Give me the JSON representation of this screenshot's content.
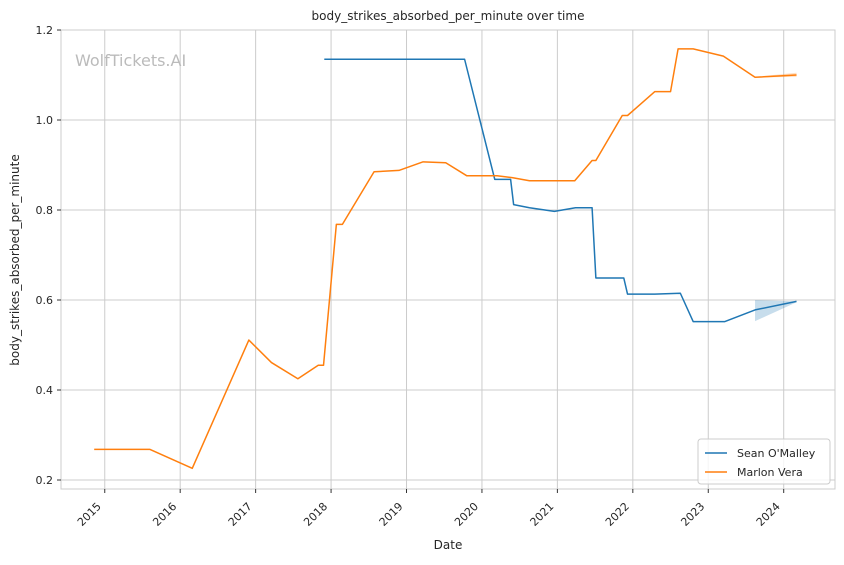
{
  "chart_data": {
    "type": "line",
    "title": "body_strikes_absorbed_per_minute over time",
    "xlabel": "Date",
    "ylabel": "body_strikes_absorbed_per_minute",
    "watermark": "WolfTickets.AI",
    "xlim": [
      2014.42,
      2024.68
    ],
    "ylim": [
      0.18,
      1.2
    ],
    "x_ticks": [
      2015,
      2016,
      2017,
      2018,
      2019,
      2020,
      2021,
      2022,
      2023,
      2024
    ],
    "y_ticks": [
      0.2,
      0.4,
      0.6,
      0.8,
      1.0,
      1.2
    ],
    "y_tick_labels": [
      "0.2",
      "0.4",
      "0.6",
      "0.8",
      "1.0",
      "1.2"
    ],
    "grid": true,
    "legend_position": "bottom-right",
    "series": [
      {
        "name": "Sean O'Malley",
        "color": "#1f77b4",
        "x": [
          2017.91,
          2019.77,
          2020.17,
          2020.38,
          2020.42,
          2020.63,
          2020.96,
          2021.24,
          2021.46,
          2021.51,
          2021.88,
          2021.93,
          2022.29,
          2022.63,
          2022.8,
          2023.22,
          2023.62,
          2024.17
        ],
        "y": [
          1.135,
          1.135,
          0.868,
          0.868,
          0.812,
          0.805,
          0.797,
          0.805,
          0.805,
          0.649,
          0.649,
          0.613,
          0.613,
          0.615,
          0.552,
          0.552,
          0.578,
          0.597
        ],
        "band": {
          "x": [
            2023.62,
            2024.17
          ],
          "upper": [
            0.6,
            0.597
          ],
          "lower": [
            0.553,
            0.595
          ]
        }
      },
      {
        "name": "Marlon Vera",
        "color": "#ff7f0e",
        "x": [
          2014.86,
          2015.6,
          2016.16,
          2016.91,
          2017.21,
          2017.56,
          2017.83,
          2017.9,
          2018.07,
          2018.15,
          2018.57,
          2018.9,
          2019.22,
          2019.52,
          2019.8,
          2020.2,
          2020.4,
          2020.63,
          2021.23,
          2021.46,
          2021.51,
          2021.86,
          2021.93,
          2022.29,
          2022.5,
          2022.6,
          2022.8,
          2023.2,
          2023.62,
          2024.17
        ],
        "y": [
          0.268,
          0.268,
          0.226,
          0.511,
          0.461,
          0.425,
          0.455,
          0.455,
          0.768,
          0.768,
          0.885,
          0.888,
          0.907,
          0.905,
          0.876,
          0.876,
          0.872,
          0.865,
          0.865,
          0.91,
          0.91,
          1.01,
          1.01,
          1.063,
          1.063,
          1.158,
          1.158,
          1.142,
          1.095,
          1.1
        ],
        "band": {
          "x": [
            2023.62,
            2024.17
          ],
          "upper": [
            1.096,
            1.105
          ],
          "lower": [
            1.094,
            1.096
          ]
        }
      }
    ]
  }
}
